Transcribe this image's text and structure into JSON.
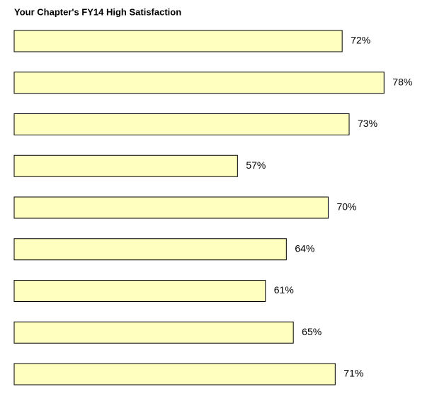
{
  "chart_data": {
    "type": "barh",
    "title": "Your Chapter's FY14 High Satisfaction",
    "categories": [
      null,
      null,
      null,
      null,
      null,
      null,
      null,
      null,
      null
    ],
    "values": [
      72,
      78,
      73,
      57,
      70,
      64,
      61,
      65,
      71
    ],
    "value_labels": [
      "72%",
      "78%",
      "73%",
      "57%",
      "70%",
      "64%",
      "61%",
      "65%",
      "71%"
    ],
    "color": "#ffffc0",
    "xlim": [
      25,
      80
    ]
  }
}
